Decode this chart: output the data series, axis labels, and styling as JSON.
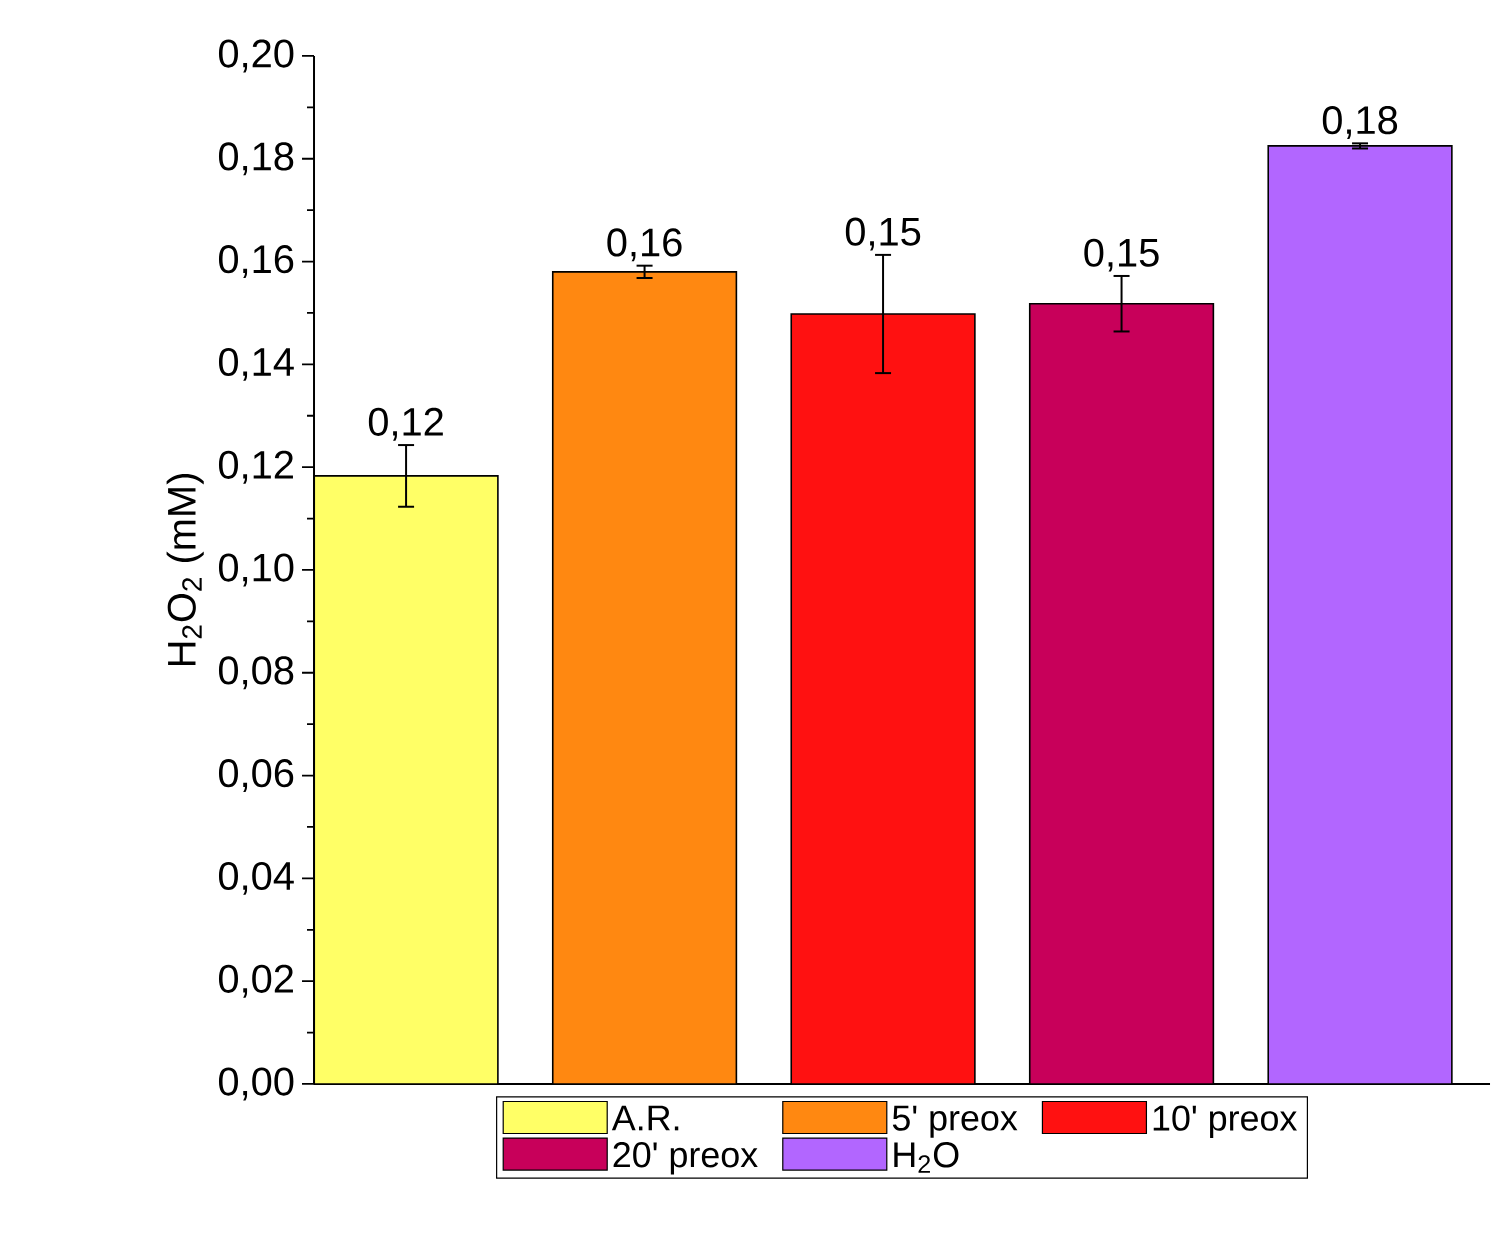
{
  "chart_data": {
    "type": "bar",
    "ylabel": "H$_{2}$O$_{2}$ (mM)",
    "categories": [
      null,
      null,
      null,
      null,
      null
    ],
    "series": [
      {
        "name": "A.R.",
        "color": "#ffff66",
        "values": [
          0.1183,
          null,
          null,
          null,
          null
        ],
        "errors": [
          0.006,
          null,
          null,
          null,
          null
        ],
        "value_labels": [
          "0,12",
          null,
          null,
          null,
          null
        ]
      },
      {
        "name": "5' preox",
        "color": "#ff8811",
        "values": [
          null,
          0.158,
          null,
          null,
          null
        ],
        "errors": [
          null,
          0.0012,
          null,
          null,
          null
        ],
        "value_labels": [
          null,
          "0,16",
          null,
          null,
          null
        ]
      },
      {
        "name": "10' preox",
        "color": "#ff1111",
        "values": [
          null,
          null,
          0.1498,
          null,
          null
        ],
        "errors": [
          null,
          null,
          0.0115,
          null,
          null
        ],
        "value_labels": [
          null,
          null,
          "0,15",
          null,
          null
        ]
      },
      {
        "name": "20' preox",
        "color": "#c8005a",
        "values": [
          null,
          null,
          null,
          0.1518,
          null
        ],
        "errors": [
          null,
          null,
          null,
          0.0054,
          null
        ],
        "value_labels": [
          null,
          null,
          null,
          "0,15",
          null
        ]
      },
      {
        "name": "H$_{2}$O",
        "color": "#b266ff",
        "values": [
          null,
          null,
          null,
          null,
          0.1825
        ],
        "errors": [
          null,
          null,
          null,
          null,
          0.0005
        ],
        "value_labels": [
          null,
          null,
          null,
          null,
          "0,18"
        ]
      }
    ],
    "ylim": [
      0,
      0.2
    ],
    "yticks": [
      {
        "value": 0,
        "label": "0,00"
      },
      {
        "value": 0.02,
        "label": "0,02"
      },
      {
        "value": 0.04,
        "label": "0,04"
      },
      {
        "value": 0.06,
        "label": "0,06"
      },
      {
        "value": 0.08,
        "label": "0,08"
      },
      {
        "value": 0.1,
        "label": "0,10"
      },
      {
        "value": 0.12,
        "label": "0,12"
      },
      {
        "value": 0.14,
        "label": "0,14"
      },
      {
        "value": 0.16,
        "label": "0,16"
      },
      {
        "value": 0.18,
        "label": "0,18"
      },
      {
        "value": 0.2,
        "label": "0,20"
      }
    ],
    "legend": "bottom"
  }
}
